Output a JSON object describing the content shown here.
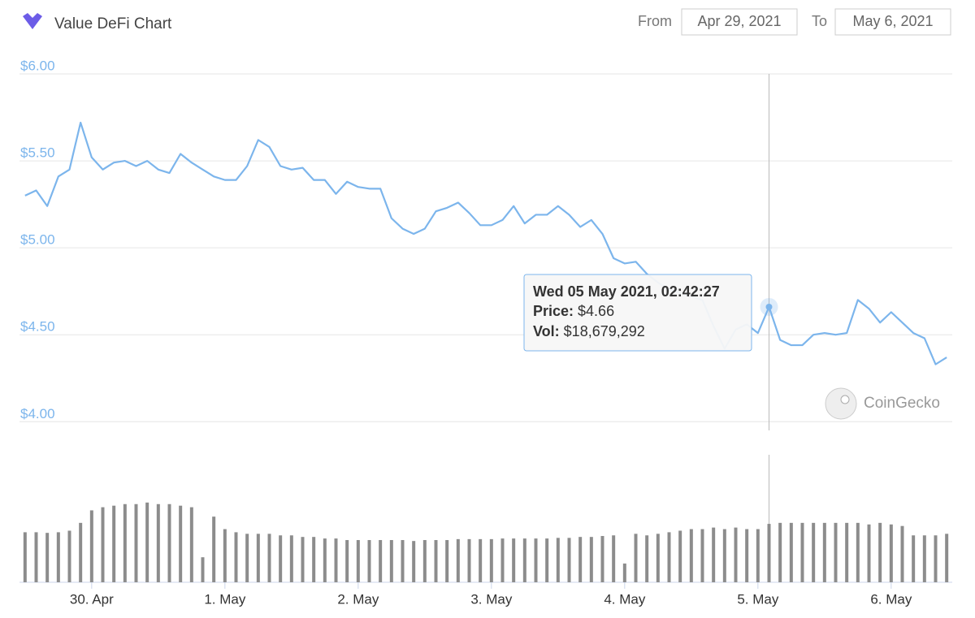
{
  "chart_data": {
    "type": "line",
    "title": "Value DeFi Chart",
    "from_label": "From",
    "from": "Apr 29, 2021",
    "to_label": "To",
    "to": "May 6, 2021",
    "watermark": "CoinGecko",
    "tooltip_title": "Wed 05 May 2021, 02:42:27",
    "categories": [
      null,
      null,
      null,
      null,
      null,
      null,
      "30. Apr",
      null,
      null,
      null,
      null,
      null,
      null,
      null,
      null,
      null,
      null,
      null,
      "1. May",
      null,
      null,
      null,
      null,
      null,
      null,
      null,
      null,
      null,
      null,
      null,
      "2. May",
      null,
      null,
      null,
      null,
      null,
      null,
      null,
      null,
      null,
      null,
      null,
      "3. May",
      null,
      null,
      null,
      null,
      null,
      null,
      null,
      null,
      null,
      null,
      null,
      "4. May",
      null,
      null,
      null,
      null,
      null,
      null,
      null,
      null,
      null,
      null,
      null,
      "5. May",
      null,
      null,
      null,
      null,
      null,
      null,
      null,
      null,
      null,
      null,
      null,
      "6. May",
      null,
      null,
      null,
      null,
      null
    ],
    "ylim": [
      3.95,
      6.0
    ],
    "yticks": [
      {
        "value": 4,
        "label": "$4.00"
      },
      {
        "value": 4.5,
        "label": "$4.50"
      },
      {
        "value": 5,
        "label": "$5.00"
      },
      {
        "value": 5.5,
        "label": "$5.50"
      },
      {
        "value": 6,
        "label": "$6.00"
      }
    ],
    "y2lim": [
      0,
      40000000
    ],
    "grid": true,
    "series": [
      {
        "name": "Price:",
        "type": "line",
        "color": "#7cb5ec",
        "values": [
          5.3,
          5.33,
          5.24,
          5.41,
          5.45,
          5.72,
          5.52,
          5.45,
          5.49,
          5.5,
          5.47,
          5.5,
          5.45,
          5.43,
          5.54,
          5.49,
          5.45,
          5.41,
          5.39,
          5.39,
          5.47,
          5.62,
          5.58,
          5.47,
          5.45,
          5.46,
          5.39,
          5.39,
          5.31,
          5.38,
          5.35,
          5.34,
          5.34,
          5.17,
          5.11,
          5.08,
          5.11,
          5.21,
          5.23,
          5.26,
          5.2,
          5.13,
          5.13,
          5.16,
          5.24,
          5.14,
          5.19,
          5.19,
          5.24,
          5.19,
          5.12,
          5.16,
          5.08,
          4.94,
          4.91,
          4.92,
          4.85,
          4.8,
          4.76,
          4.74,
          4.72,
          4.7,
          4.55,
          4.42,
          4.53,
          4.56,
          4.51,
          4.66,
          4.47,
          4.44,
          4.44,
          4.5,
          4.51,
          4.5,
          4.51,
          4.7,
          4.65,
          4.57,
          4.63,
          4.57,
          4.51,
          4.48,
          4.33,
          4.37
        ],
        "value_labels": [
          null,
          null,
          null,
          null,
          null,
          null,
          null,
          null,
          null,
          null,
          null,
          null,
          null,
          null,
          null,
          null,
          null,
          null,
          null,
          null,
          null,
          null,
          null,
          null,
          null,
          null,
          null,
          null,
          null,
          null,
          null,
          null,
          null,
          null,
          null,
          null,
          null,
          null,
          null,
          null,
          null,
          null,
          null,
          null,
          null,
          null,
          null,
          null,
          null,
          null,
          null,
          null,
          null,
          null,
          null,
          null,
          null,
          null,
          null,
          null,
          null,
          null,
          null,
          null,
          null,
          null,
          null,
          "$4.66",
          null,
          null,
          null,
          null,
          null,
          null,
          null,
          null,
          null,
          null,
          null,
          null,
          null,
          null,
          null,
          null
        ]
      },
      {
        "name": "Vol:",
        "type": "bar",
        "axis": "y2",
        "color": "#8c8c8c",
        "values": [
          16000000,
          16000000,
          15800000,
          16000000,
          16500000,
          19000000,
          23000000,
          24000000,
          24500000,
          25000000,
          25000000,
          25500000,
          25000000,
          25000000,
          24500000,
          24000000,
          8000000,
          21000000,
          17000000,
          16000000,
          15500000,
          15500000,
          15500000,
          15000000,
          15000000,
          14500000,
          14500000,
          14000000,
          14000000,
          13500000,
          13500000,
          13500000,
          13500000,
          13500000,
          13500000,
          13200000,
          13500000,
          13500000,
          13500000,
          13800000,
          13800000,
          13800000,
          13800000,
          14000000,
          14000000,
          14000000,
          14000000,
          14000000,
          14200000,
          14200000,
          14500000,
          14500000,
          14800000,
          15000000,
          6000000,
          15500000,
          15000000,
          15500000,
          16000000,
          16500000,
          17000000,
          17000000,
          17500000,
          17000000,
          17500000,
          17000000,
          17000000,
          18679292,
          19000000,
          19000000,
          19000000,
          19000000,
          19000000,
          19000000,
          19000000,
          19000000,
          18500000,
          19000000,
          18500000,
          18000000,
          15000000,
          15000000,
          15000000,
          15500000
        ],
        "value_labels": [
          null,
          null,
          null,
          null,
          null,
          null,
          null,
          null,
          null,
          null,
          null,
          null,
          null,
          null,
          null,
          null,
          null,
          null,
          null,
          null,
          null,
          null,
          null,
          null,
          null,
          null,
          null,
          null,
          null,
          null,
          null,
          null,
          null,
          null,
          null,
          null,
          null,
          null,
          null,
          null,
          null,
          null,
          null,
          null,
          null,
          null,
          null,
          null,
          null,
          null,
          null,
          null,
          null,
          null,
          null,
          null,
          null,
          null,
          null,
          null,
          null,
          null,
          null,
          null,
          null,
          null,
          null,
          "$18,679,292",
          null,
          null,
          null,
          null,
          null,
          null,
          null,
          null,
          null,
          null,
          null,
          null,
          null,
          null,
          null,
          null
        ]
      }
    ]
  }
}
